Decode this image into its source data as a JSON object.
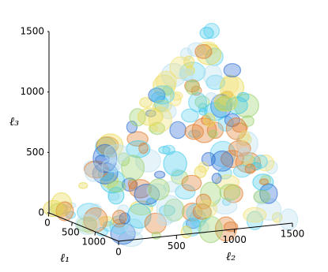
{
  "chart_data": {
    "type": "volume3d",
    "x_label": "ℓ₁",
    "y_label": "ℓ₂",
    "z_label": "ℓ₃",
    "xlim": [
      0,
      1500
    ],
    "xticks": [
      0,
      500,
      1000
    ],
    "ylim": [
      0,
      1500
    ],
    "yticks": [
      0,
      500,
      1000,
      1500
    ],
    "zlim": [
      0,
      1500
    ],
    "zticks": [
      0,
      500,
      1000,
      1500
    ]
  }
}
